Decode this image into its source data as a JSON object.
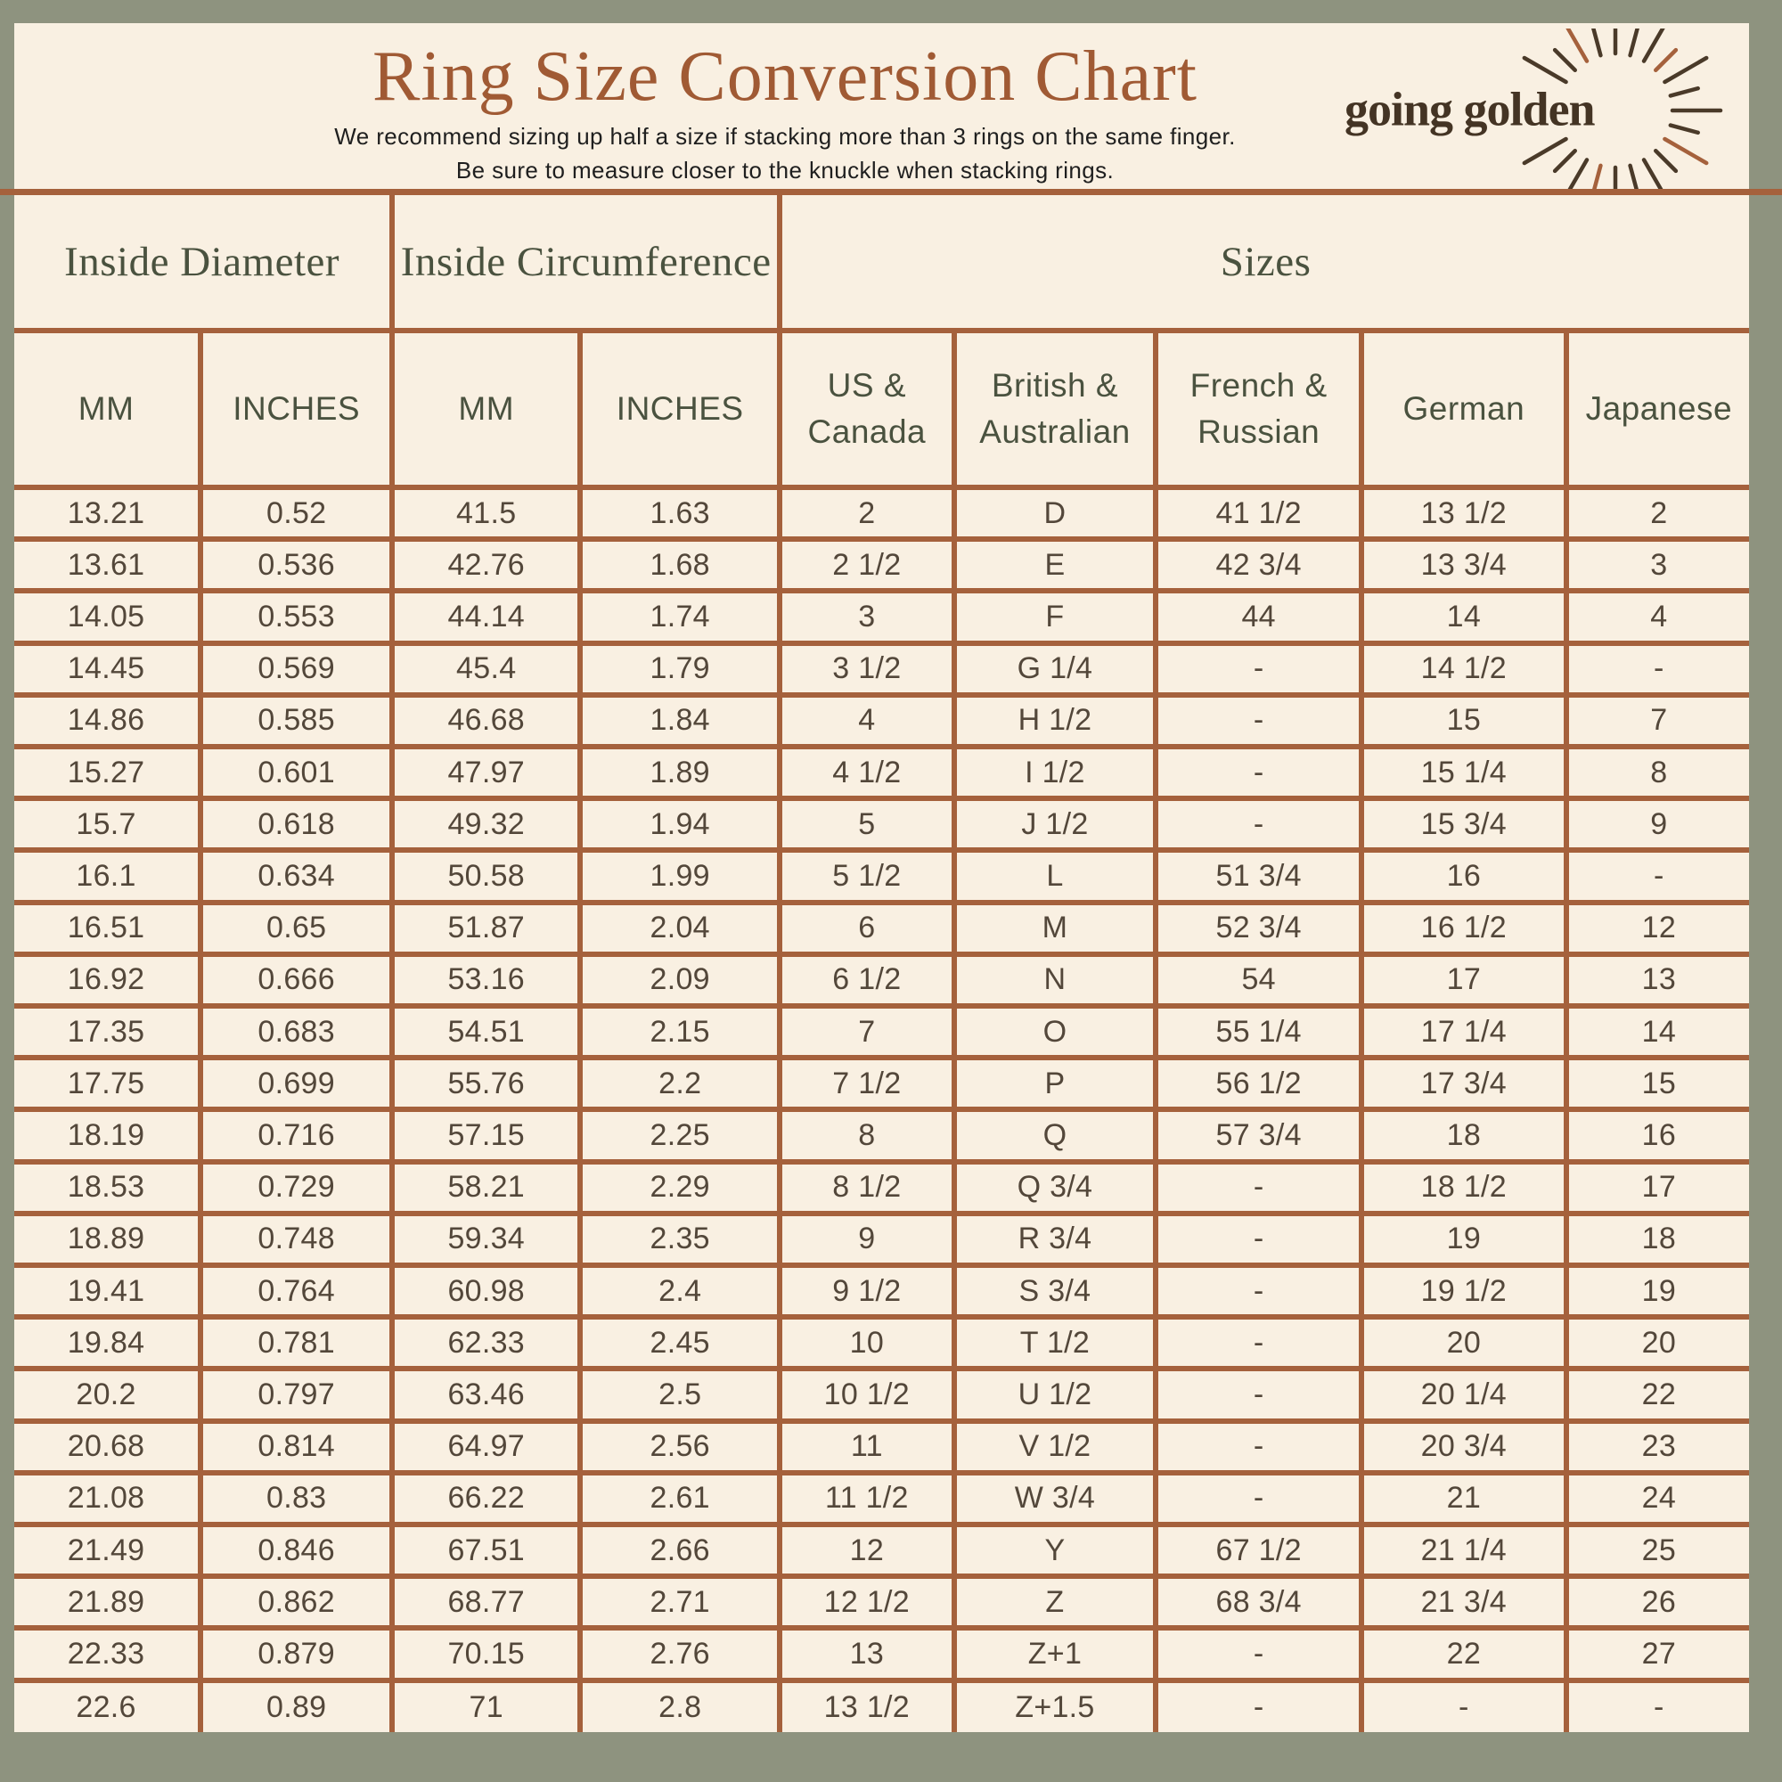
{
  "header": {
    "title": "Ring Size Conversion Chart",
    "subtitle_line1": "We recommend sizing up half a size if stacking more than 3 rings on the same finger.",
    "subtitle_line2": "Be sure to measure closer to the knuckle when stacking rings.",
    "logo_text": "going golden"
  },
  "colors": {
    "background": "#8e937f",
    "panel": "#f9f0e2",
    "border": "#a5613c",
    "title": "#a05a34",
    "header_text": "#4a523f",
    "cell_text": "#53473a",
    "logo_text": "#443424"
  },
  "chart_data": {
    "type": "table",
    "title": "Ring Size Conversion Chart",
    "notes": [
      "We recommend sizing up half a size if stacking more than 3 rings on the same finger.",
      "Be sure to measure closer to the knuckle when stacking rings."
    ],
    "column_groups": [
      {
        "label": "Inside Diameter",
        "colspan": 2
      },
      {
        "label": "Inside Circumference",
        "colspan": 2
      },
      {
        "label": "Sizes",
        "colspan": 5
      }
    ],
    "columns": [
      "MM",
      "INCHES",
      "MM",
      "INCHES",
      "US & Canada",
      "British & Australian",
      "French & Russian",
      "German",
      "Japanese"
    ],
    "rows": [
      [
        "13.21",
        "0.52",
        "41.5",
        "1.63",
        "2",
        "D",
        "41 1/2",
        "13 1/2",
        "2"
      ],
      [
        "13.61",
        "0.536",
        "42.76",
        "1.68",
        "2 1/2",
        "E",
        "42 3/4",
        "13 3/4",
        "3"
      ],
      [
        "14.05",
        "0.553",
        "44.14",
        "1.74",
        "3",
        "F",
        "44",
        "14",
        "4"
      ],
      [
        "14.45",
        "0.569",
        "45.4",
        "1.79",
        "3 1/2",
        "G 1/4",
        "-",
        "14 1/2",
        "-"
      ],
      [
        "14.86",
        "0.585",
        "46.68",
        "1.84",
        "4",
        "H 1/2",
        "-",
        "15",
        "7"
      ],
      [
        "15.27",
        "0.601",
        "47.97",
        "1.89",
        "4 1/2",
        "I 1/2",
        "-",
        "15 1/4",
        "8"
      ],
      [
        "15.7",
        "0.618",
        "49.32",
        "1.94",
        "5",
        "J 1/2",
        "-",
        "15 3/4",
        "9"
      ],
      [
        "16.1",
        "0.634",
        "50.58",
        "1.99",
        "5 1/2",
        "L",
        "51 3/4",
        "16",
        "-"
      ],
      [
        "16.51",
        "0.65",
        "51.87",
        "2.04",
        "6",
        "M",
        "52 3/4",
        "16 1/2",
        "12"
      ],
      [
        "16.92",
        "0.666",
        "53.16",
        "2.09",
        "6 1/2",
        "N",
        "54",
        "17",
        "13"
      ],
      [
        "17.35",
        "0.683",
        "54.51",
        "2.15",
        "7",
        "O",
        "55 1/4",
        "17 1/4",
        "14"
      ],
      [
        "17.75",
        "0.699",
        "55.76",
        "2.2",
        "7 1/2",
        "P",
        "56 1/2",
        "17 3/4",
        "15"
      ],
      [
        "18.19",
        "0.716",
        "57.15",
        "2.25",
        "8",
        "Q",
        "57 3/4",
        "18",
        "16"
      ],
      [
        "18.53",
        "0.729",
        "58.21",
        "2.29",
        "8 1/2",
        "Q 3/4",
        "-",
        "18 1/2",
        "17"
      ],
      [
        "18.89",
        "0.748",
        "59.34",
        "2.35",
        "9",
        "R 3/4",
        "-",
        "19",
        "18"
      ],
      [
        "19.41",
        "0.764",
        "60.98",
        "2.4",
        "9 1/2",
        "S 3/4",
        "-",
        "19 1/2",
        "19"
      ],
      [
        "19.84",
        "0.781",
        "62.33",
        "2.45",
        "10",
        "T 1/2",
        "-",
        "20",
        "20"
      ],
      [
        "20.2",
        "0.797",
        "63.46",
        "2.5",
        "10 1/2",
        "U 1/2",
        "-",
        "20 1/4",
        "22"
      ],
      [
        "20.68",
        "0.814",
        "64.97",
        "2.56",
        "11",
        "V 1/2",
        "-",
        "20 3/4",
        "23"
      ],
      [
        "21.08",
        "0.83",
        "66.22",
        "2.61",
        "11 1/2",
        "W 3/4",
        "-",
        "21",
        "24"
      ],
      [
        "21.49",
        "0.846",
        "67.51",
        "2.66",
        "12",
        "Y",
        "67 1/2",
        "21 1/4",
        "25"
      ],
      [
        "21.89",
        "0.862",
        "68.77",
        "2.71",
        "12 1/2",
        "Z",
        "68 3/4",
        "21 3/4",
        "26"
      ],
      [
        "22.33",
        "0.879",
        "70.15",
        "2.76",
        "13",
        "Z+1",
        "-",
        "22",
        "27"
      ],
      [
        "22.6",
        "0.89",
        "71",
        "2.8",
        "13 1/2",
        "Z+1.5",
        "-",
        "-",
        "-"
      ]
    ]
  }
}
